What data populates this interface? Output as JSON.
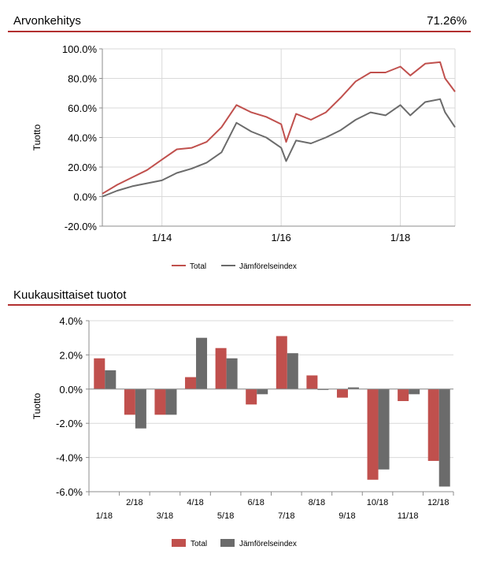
{
  "performance": {
    "title": "Arvonkehitys",
    "value": "71.26%"
  },
  "monthly": {
    "title": "Kuukausittaiset tuotot"
  },
  "colors": {
    "total": "#c0504d",
    "benchmark": "#6b6b6b",
    "rule": "#b22f2f",
    "grid": "#d9d9d9",
    "axis": "#8c8c8c"
  },
  "chart_data": [
    {
      "type": "line",
      "ylabel": "Tuotto",
      "ylim": [
        -20,
        100
      ],
      "yticks": [
        "100.0%",
        "80.0%",
        "60.0%",
        "40.0%",
        "20.0%",
        "0.0%",
        "-20.0%"
      ],
      "xlim": [
        "2013-01",
        "2018-12"
      ],
      "xticks": [
        {
          "label": "1/14",
          "date": "2014-01"
        },
        {
          "label": "1/16",
          "date": "2016-01"
        },
        {
          "label": "1/18",
          "date": "2018-01"
        }
      ],
      "grid": true,
      "legend": "bottom",
      "x": [
        "2013-01",
        "2013-04",
        "2013-07",
        "2013-10",
        "2014-01",
        "2014-04",
        "2014-07",
        "2014-10",
        "2015-01",
        "2015-04",
        "2015-07",
        "2015-10",
        "2016-01",
        "2016-02",
        "2016-04",
        "2016-07",
        "2016-10",
        "2017-01",
        "2017-04",
        "2017-07",
        "2017-10",
        "2018-01",
        "2018-03",
        "2018-06",
        "2018-09",
        "2018-10",
        "2018-12"
      ],
      "series": [
        {
          "name": "Total",
          "color": "#c0504d",
          "values": [
            2,
            8,
            13,
            18,
            25,
            32,
            33,
            37,
            47,
            62,
            57,
            54,
            49,
            37,
            56,
            52,
            57,
            67,
            78,
            84,
            84,
            88,
            82,
            90,
            91,
            80,
            71
          ]
        },
        {
          "name": "Jämförelseindex",
          "color": "#6b6b6b",
          "values": [
            0,
            4,
            7,
            9,
            11,
            16,
            19,
            23,
            30,
            50,
            44,
            40,
            33,
            24,
            38,
            36,
            40,
            45,
            52,
            57,
            55,
            62,
            55,
            64,
            66,
            57,
            47
          ]
        }
      ]
    },
    {
      "type": "bar",
      "ylabel": "Tuotto",
      "ylim": [
        -6,
        4
      ],
      "yticks": [
        "4.0%",
        "2.0%",
        "0.0%",
        "-2.0%",
        "-4.0%",
        "-6.0%"
      ],
      "categories": [
        "1/18",
        "2/18",
        "3/18",
        "4/18",
        "5/18",
        "6/18",
        "7/18",
        "8/18",
        "9/18",
        "10/18",
        "11/18",
        "12/18"
      ],
      "grid": true,
      "legend": "bottom",
      "series": [
        {
          "name": "Total",
          "color": "#c0504d",
          "values": [
            1.8,
            -1.5,
            -1.5,
            0.7,
            2.4,
            -0.9,
            3.1,
            0.8,
            -0.5,
            -5.3,
            -0.7,
            -4.2
          ]
        },
        {
          "name": "Jämförelseindex",
          "color": "#6b6b6b",
          "values": [
            1.1,
            -2.3,
            -1.5,
            3.0,
            1.8,
            -0.3,
            2.1,
            -0.05,
            0.1,
            -4.7,
            -0.3,
            -5.7
          ]
        }
      ]
    }
  ]
}
